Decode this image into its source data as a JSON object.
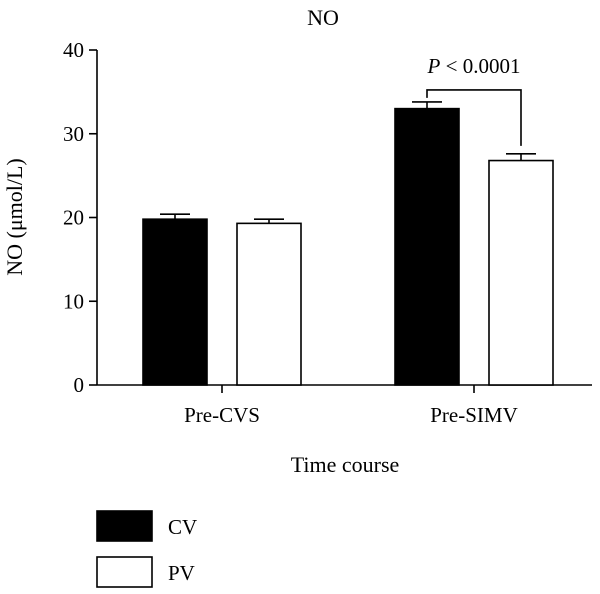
{
  "chart_data": {
    "type": "bar",
    "title": "NO",
    "xlabel": "Time course",
    "ylabel": "NO (μmol/L)",
    "ylim": [
      0,
      40
    ],
    "yticks": [
      0,
      10,
      20,
      30,
      40
    ],
    "categories": [
      "Pre-CVS",
      "Pre-SIMV"
    ],
    "series": [
      {
        "name": "CV",
        "values": [
          19.8,
          33.0
        ],
        "errors": [
          0.6,
          0.8
        ],
        "color": "#000000"
      },
      {
        "name": "PV",
        "values": [
          19.3,
          26.8
        ],
        "errors": [
          0.5,
          0.8
        ],
        "color": "#ffffff"
      }
    ],
    "annotation": {
      "label": "P < 0.0001",
      "category": "Pre-SIMV"
    },
    "legend_position": "bottom-left",
    "grid": false
  }
}
